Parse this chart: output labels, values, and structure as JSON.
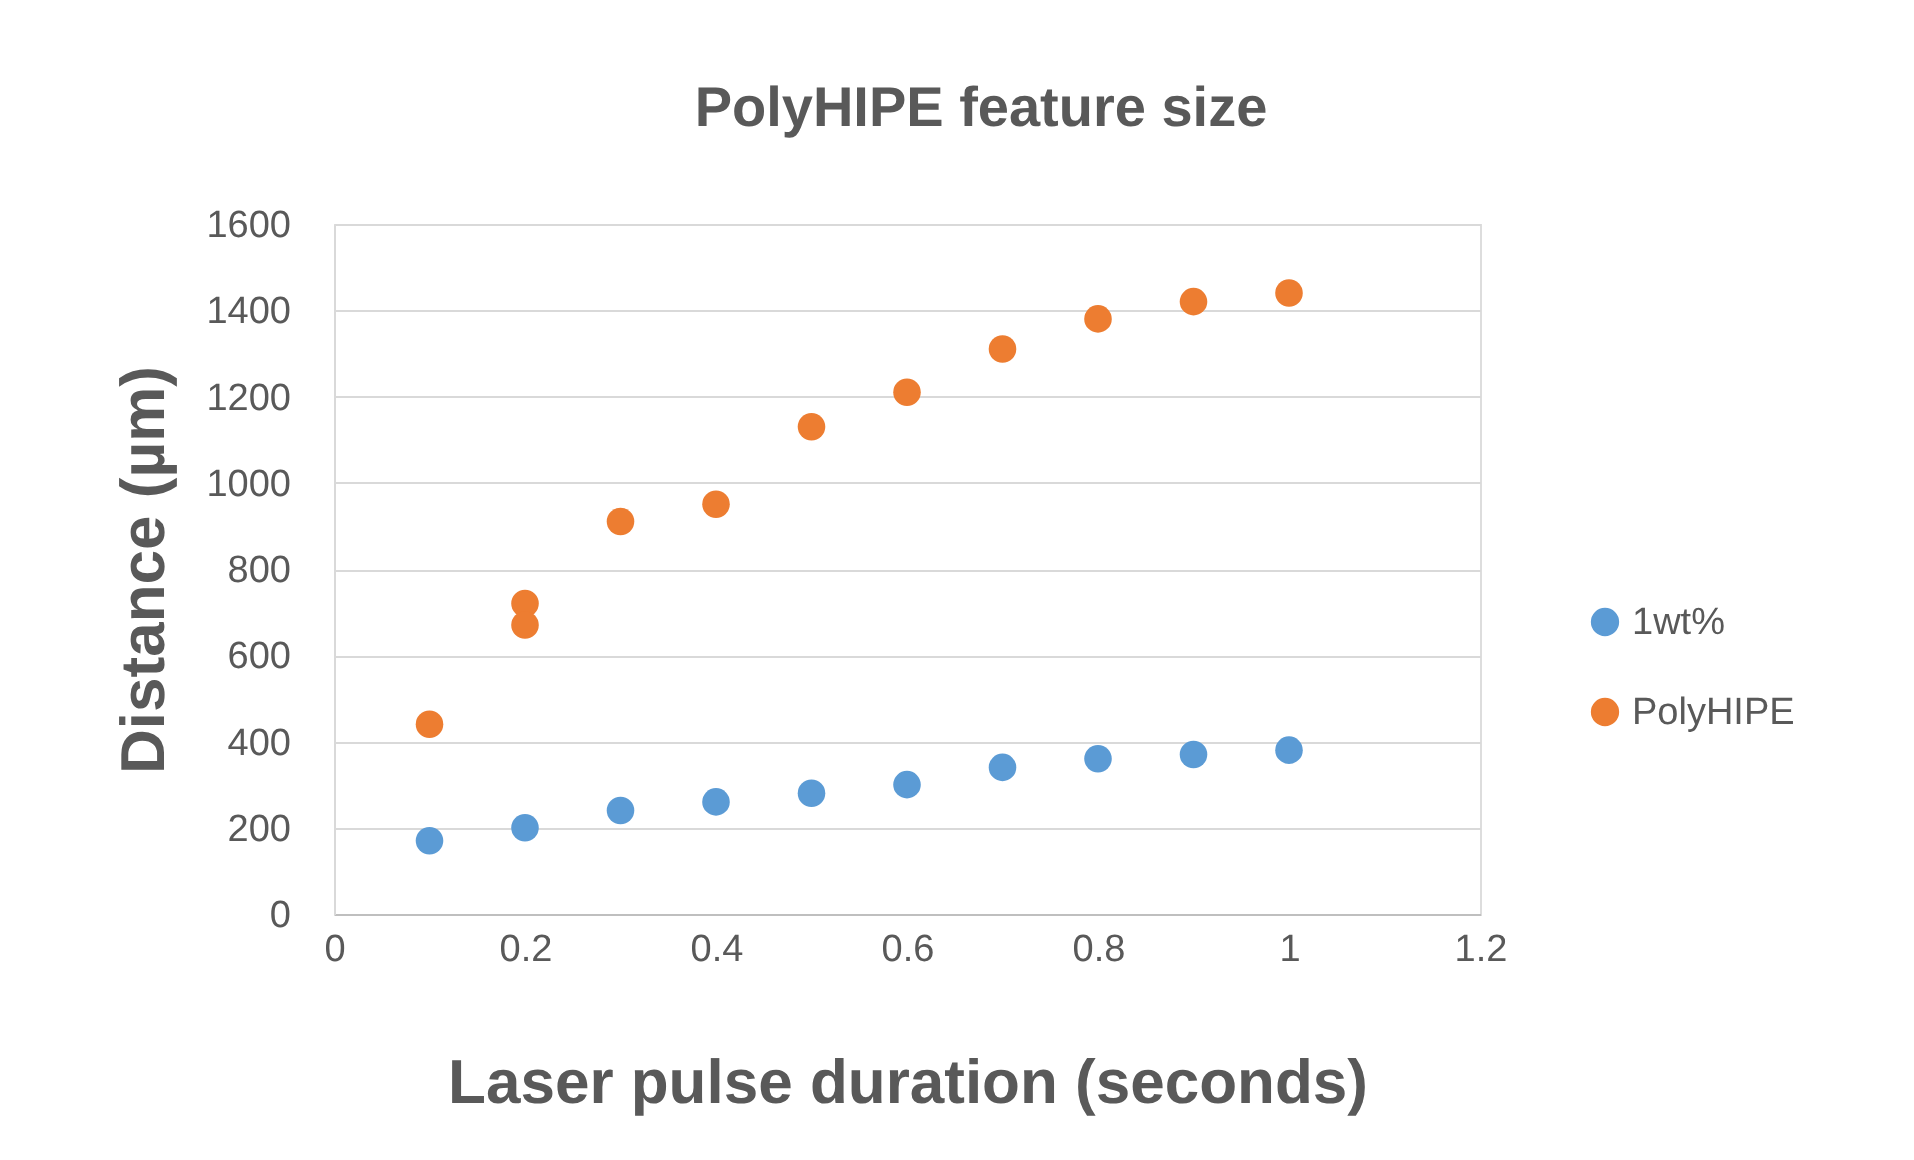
{
  "chart_data": {
    "type": "scatter",
    "title": "PolyHIPE feature size",
    "xlabel": "Laser pulse duration (seconds)",
    "ylabel": "Distance (µm)",
    "series": [
      {
        "name": "1wt%",
        "color": "#5b9bd5",
        "x": [
          0.1,
          0.2,
          0.3,
          0.4,
          0.5,
          0.6,
          0.7,
          0.8,
          0.9,
          1.0
        ],
        "values": [
          170,
          200,
          240,
          260,
          280,
          300,
          340,
          360,
          370,
          380
        ]
      },
      {
        "name": "PolyHIPE",
        "color": "#ed7d31",
        "x": [
          0.1,
          0.2,
          0.2,
          0.3,
          0.4,
          0.5,
          0.6,
          0.7,
          0.8,
          0.9,
          1.0
        ],
        "values": [
          440,
          720,
          670,
          910,
          950,
          1130,
          1210,
          1310,
          1380,
          1420,
          1440
        ]
      }
    ],
    "xlim": [
      0,
      1.2
    ],
    "xticks": [
      0,
      0.2,
      0.4,
      0.6,
      0.8,
      1,
      1.2
    ],
    "ylim": [
      0,
      1600
    ],
    "yticks": [
      0,
      200,
      400,
      600,
      800,
      1000,
      1200,
      1400,
      1600
    ],
    "grid": "y",
    "legend": "right",
    "marker": "circle"
  }
}
